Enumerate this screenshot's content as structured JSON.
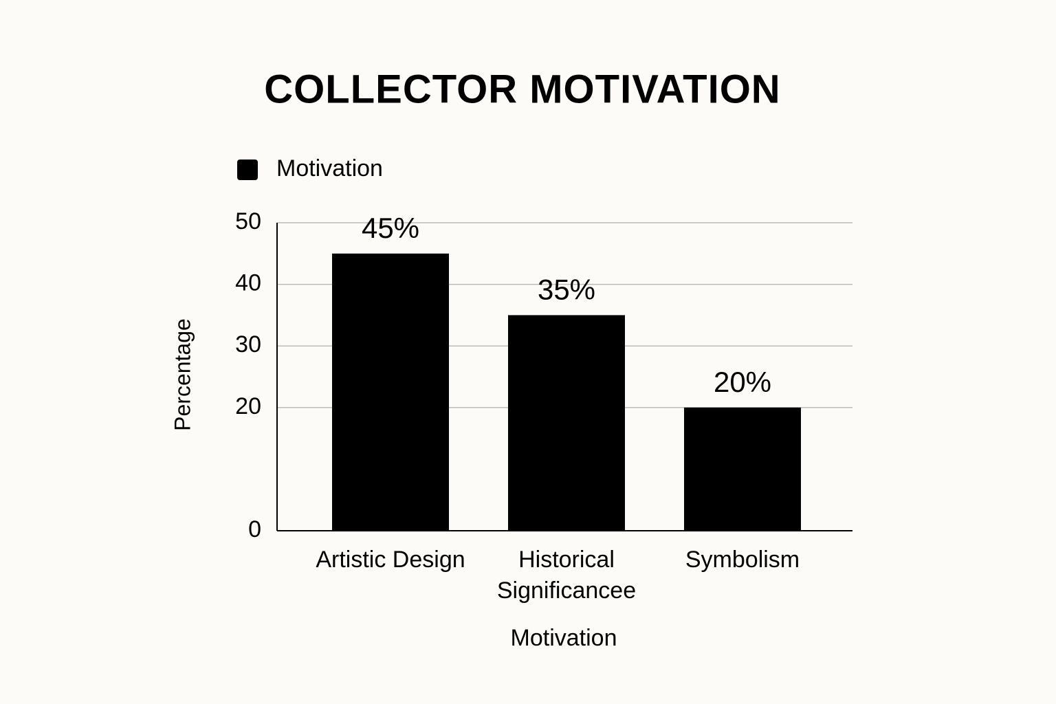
{
  "chart_data": {
    "type": "bar",
    "title": "COLLECTOR MOTIVATION",
    "x_label": "Motivation",
    "y_label": "Percentage",
    "categories": [
      "Artistic Design",
      "Historical Significancee",
      "Symbolism"
    ],
    "series": [
      {
        "name": "Motivation",
        "color": "#000000",
        "values": [
          45,
          35,
          20
        ],
        "value_labels": [
          "45%",
          "35%",
          "20%"
        ]
      }
    ],
    "ylim": [
      0,
      50
    ],
    "yticks": [
      0,
      20,
      30,
      40,
      50
    ],
    "grid": true,
    "legend": "top-left"
  }
}
